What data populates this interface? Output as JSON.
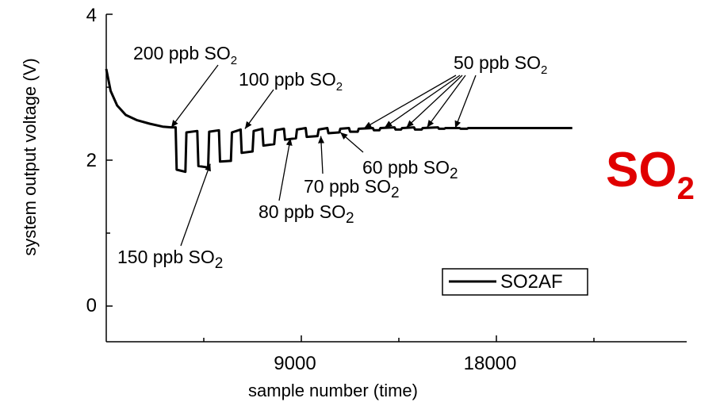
{
  "chart_data": {
    "type": "line",
    "xlabel": "sample number (time)",
    "ylabel": "system output voltage (V)",
    "xlim": [
      0,
      24000
    ],
    "ylim": [
      -0.6,
      4.0
    ],
    "x_ticks": [
      9000,
      18000
    ],
    "y_ticks": [
      0,
      2,
      4
    ],
    "grid": false,
    "legend": {
      "position": "bottom-right",
      "entries": [
        "SO2AF"
      ]
    },
    "series": [
      {
        "name": "SO2AF",
        "color": "#000000",
        "points": [
          [
            0,
            3.25
          ],
          [
            200,
            2.95
          ],
          [
            500,
            2.75
          ],
          [
            900,
            2.62
          ],
          [
            1400,
            2.55
          ],
          [
            2000,
            2.5
          ],
          [
            2600,
            2.46
          ],
          [
            3000,
            2.45
          ],
          [
            3200,
            2.45
          ],
          [
            3250,
            1.87
          ],
          [
            3650,
            1.84
          ],
          [
            3700,
            2.38
          ],
          [
            4200,
            2.4
          ],
          [
            4250,
            1.92
          ],
          [
            4700,
            1.9
          ],
          [
            4750,
            2.39
          ],
          [
            5200,
            2.41
          ],
          [
            5250,
            1.98
          ],
          [
            5750,
            1.99
          ],
          [
            5800,
            2.38
          ],
          [
            6200,
            2.42
          ],
          [
            6250,
            2.1
          ],
          [
            6750,
            2.12
          ],
          [
            6800,
            2.4
          ],
          [
            7200,
            2.43
          ],
          [
            7250,
            2.2
          ],
          [
            7750,
            2.22
          ],
          [
            7800,
            2.41
          ],
          [
            8200,
            2.43
          ],
          [
            8250,
            2.28
          ],
          [
            8750,
            2.3
          ],
          [
            8800,
            2.42
          ],
          [
            9200,
            2.44
          ],
          [
            9250,
            2.32
          ],
          [
            9750,
            2.33
          ],
          [
            9800,
            2.42
          ],
          [
            10200,
            2.44
          ],
          [
            10250,
            2.37
          ],
          [
            10750,
            2.38
          ],
          [
            10800,
            2.43
          ],
          [
            11200,
            2.44
          ],
          [
            11250,
            2.39
          ],
          [
            11600,
            2.39
          ],
          [
            11650,
            2.43
          ],
          [
            12300,
            2.44
          ],
          [
            12350,
            2.41
          ],
          [
            12600,
            2.41
          ],
          [
            12650,
            2.44
          ],
          [
            13300,
            2.45
          ],
          [
            13350,
            2.42
          ],
          [
            13600,
            2.42
          ],
          [
            13650,
            2.44
          ],
          [
            14200,
            2.45
          ],
          [
            14250,
            2.42
          ],
          [
            14550,
            2.42
          ],
          [
            14600,
            2.44
          ],
          [
            15300,
            2.45
          ],
          [
            15350,
            2.43
          ],
          [
            15600,
            2.43
          ],
          [
            15650,
            2.44
          ],
          [
            16300,
            2.44
          ],
          [
            16350,
            2.43
          ],
          [
            16650,
            2.43
          ],
          [
            16700,
            2.44
          ],
          [
            21500,
            2.44
          ]
        ]
      }
    ],
    "annotations": [
      {
        "label": "200 ppb SO",
        "sub": "2",
        "target": [
          3000,
          2.45
        ]
      },
      {
        "label": "100 ppb SO",
        "sub": "2",
        "target": [
          6400,
          2.43
        ]
      },
      {
        "label": "50 ppb SO",
        "sub": "2",
        "targets": [
          [
            11900,
            2.44
          ],
          [
            12850,
            2.45
          ],
          [
            13850,
            2.45
          ],
          [
            14800,
            2.45
          ],
          [
            16100,
            2.44
          ]
        ]
      },
      {
        "label": "60 ppb SO",
        "sub": "2",
        "target": [
          10800,
          2.38
        ]
      },
      {
        "label": "70 ppb SO",
        "sub": "2",
        "target": [
          9900,
          2.33
        ]
      },
      {
        "label": "80 ppb SO",
        "sub": "2",
        "target": [
          8500,
          2.3
        ]
      },
      {
        "label": "150 ppb SO",
        "sub": "2",
        "target": [
          4800,
          1.95
        ]
      }
    ]
  },
  "overlay_label": {
    "text": "SO",
    "sub": "2",
    "color": "#e00000"
  }
}
